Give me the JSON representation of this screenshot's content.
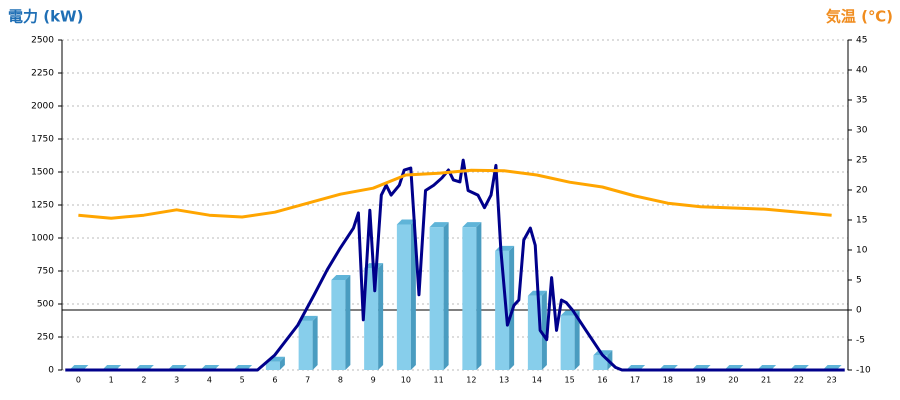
{
  "chart_data": {
    "type": "bar",
    "y_label": "電力 (kW)",
    "y2_label": "気温 (℃)",
    "y_label_color": "#1f6fb5",
    "y2_label_color": "#f08c1e",
    "categories": [
      "0",
      "1",
      "2",
      "3",
      "4",
      "5",
      "6",
      "7",
      "8",
      "9",
      "10",
      "11",
      "12",
      "13",
      "14",
      "15",
      "16",
      "17",
      "18",
      "19",
      "20",
      "21",
      "22",
      "23"
    ],
    "ylim": [
      0,
      2500
    ],
    "yticks": [
      0,
      250,
      500,
      750,
      1000,
      1250,
      1500,
      1750,
      2000,
      2250,
      2500
    ],
    "y2lim": [
      -10,
      45
    ],
    "y2ticks": [
      -10,
      -5,
      0,
      5,
      10,
      15,
      20,
      25,
      30,
      35,
      40,
      45
    ],
    "grid": true,
    "series": [
      {
        "type": "bar",
        "color": "#87ceeb",
        "values": [
          0,
          0,
          0,
          0,
          0,
          0,
          100,
          410,
          720,
          810,
          1140,
          1120,
          1120,
          940,
          600,
          450,
          150,
          0,
          0,
          0,
          0,
          0,
          0,
          0
        ]
      },
      {
        "type": "line",
        "color": "#00008b",
        "x": [
          -0.4,
          5.47,
          6,
          6.7,
          7.2,
          7.6,
          8,
          8.4,
          8.55,
          8.7,
          8.9,
          9.05,
          9.25,
          9.4,
          9.55,
          9.8,
          9.95,
          10.15,
          10.4,
          10.6,
          10.85,
          11.1,
          11.3,
          11.45,
          11.65,
          11.75,
          11.9,
          12.2,
          12.4,
          12.6,
          12.75,
          12.9,
          13.1,
          13.3,
          13.45,
          13.6,
          13.8,
          13.95,
          14.1,
          14.3,
          14.45,
          14.6,
          14.75,
          14.9,
          15.1,
          15.5,
          16,
          16.4,
          16.6,
          23.4
        ],
        "values": [
          0,
          0,
          114,
          340,
          570,
          760,
          925,
          1075,
          1190,
          380,
          1210,
          600,
          1325,
          1400,
          1325,
          1400,
          1515,
          1530,
          570,
          1360,
          1400,
          1455,
          1515,
          1440,
          1425,
          1590,
          1360,
          1325,
          1230,
          1325,
          1550,
          910,
          340,
          490,
          530,
          985,
          1075,
          945,
          300,
          230,
          700,
          300,
          530,
          510,
          450,
          300,
          114,
          20,
          0,
          0
        ]
      },
      {
        "type": "line",
        "color": "#ffa500",
        "axis": "y2",
        "values": [
          15.8,
          15.3,
          15.8,
          16.7,
          15.8,
          15.5,
          16.3,
          17.8,
          19.3,
          20.3,
          22.5,
          22.8,
          23.3,
          23.2,
          22.5,
          21.3,
          20.5,
          19,
          17.8,
          17.2,
          17,
          16.8,
          16.3,
          15.8
        ]
      }
    ]
  }
}
